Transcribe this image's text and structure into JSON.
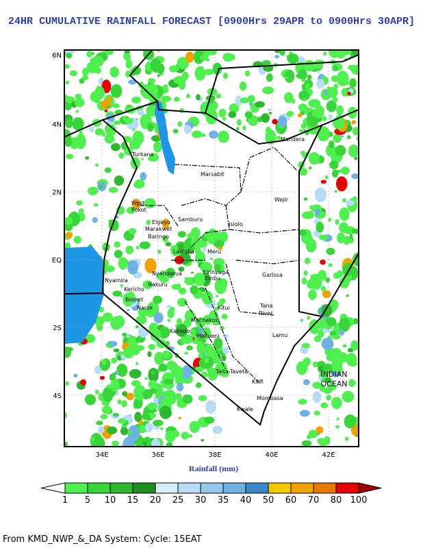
{
  "title": "24HR CUMULATIVE RAINFALL FORECAST [0900Hrs 29APR to 0900Hrs 30APR]",
  "map": {
    "lat_ticks": [
      "6N",
      "4N",
      "2N",
      "EQ",
      "2S",
      "4S"
    ],
    "lon_ticks": [
      "34E",
      "36E",
      "38E",
      "40E",
      "42E"
    ],
    "places": [
      "Turkana",
      "Marsabit",
      "Wajir",
      "Mandera",
      "Samburu",
      "Isiolo",
      "Meru",
      "Laikipia",
      "Garissa",
      "Embu",
      "Kirinyaga",
      "Kitui",
      "Tana",
      "River",
      "Machakos",
      "Makueni",
      "Kajiado",
      "Taita-Taveta",
      "Kilifi",
      "Mombasa",
      "Kwale",
      "Lamu",
      "Nakuru",
      "Baringo",
      "Nyandarua",
      "Bomet",
      "West",
      "Pokot",
      "Elgeyo",
      "Marakwet",
      "Kericho",
      "Narok",
      "Nyamira"
    ],
    "ocean_label": [
      "INDIAN",
      "OCEAN"
    ]
  },
  "axis_label": "Rainfall (mm)",
  "colorbar": {
    "labels": [
      1,
      5,
      10,
      15,
      20,
      25,
      30,
      35,
      40,
      50,
      60,
      70,
      80,
      100
    ],
    "colors": [
      "#4df04d",
      "#37d637",
      "#2db82d",
      "#1f8f1f",
      "#d6eefa",
      "#b6dcf6",
      "#96c6ec",
      "#6cb2e4",
      "#3a8ac6",
      "#f5c800",
      "#f2a200",
      "#e67a00",
      "#e60000"
    ],
    "under_color": "#ffffff",
    "over_color": "#a00000"
  },
  "footer": "From KMD_NWP_&_DA System: Cycle: 15EAT"
}
